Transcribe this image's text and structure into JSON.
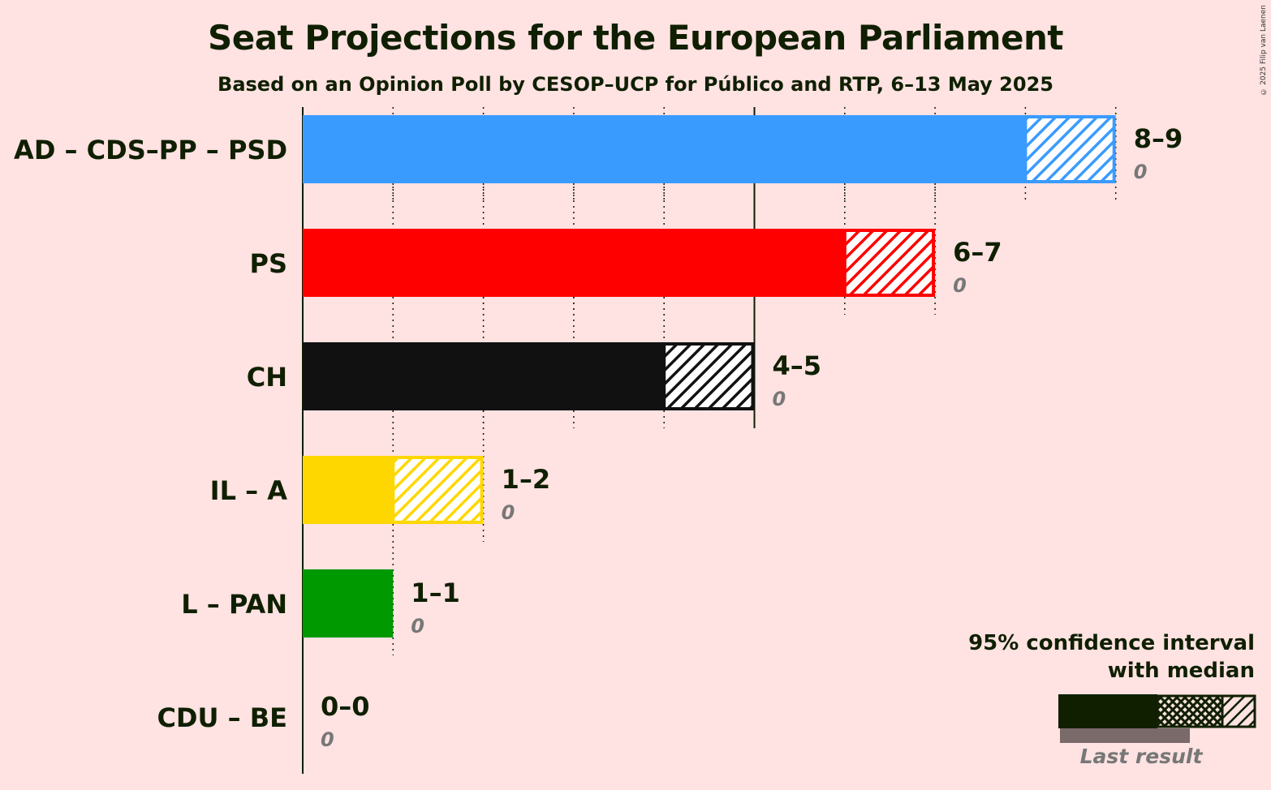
{
  "title": "Seat Projections for the European Parliament",
  "subtitle": "Based on an Opinion Poll by CESOP–UCP for Público and RTP, 6–13 May 2025",
  "copyright": "© 2025 Filip van Laenen",
  "legend": {
    "line1": "95% confidence interval",
    "line2": "with median",
    "last_result": "Last result"
  },
  "chart_data": {
    "type": "bar",
    "orientation": "horizontal",
    "title": "Seat Projections for the European Parliament",
    "subtitle": "Based on an Opinion Poll by CESOP–UCP for Público and RTP, 6–13 May 2025",
    "xlim": [
      0,
      9
    ],
    "grid": true,
    "legend_position": "bottom-right",
    "series": [
      {
        "party": "AD – CDS–PP – PSD",
        "low": 8,
        "high": 9,
        "range_label": "8–9",
        "last_result": "0",
        "color": "#3A9BFF"
      },
      {
        "party": "PS",
        "low": 6,
        "high": 7,
        "range_label": "6–7",
        "last_result": "0",
        "color": "#FF0000"
      },
      {
        "party": "CH",
        "low": 4,
        "high": 5,
        "range_label": "4–5",
        "last_result": "0",
        "color": "#111111"
      },
      {
        "party": "IL – A",
        "low": 1,
        "high": 2,
        "range_label": "1–2",
        "last_result": "0",
        "color": "#FFD700"
      },
      {
        "party": "L – PAN",
        "low": 1,
        "high": 1,
        "range_label": "1–1",
        "last_result": "0",
        "color": "#009900"
      },
      {
        "party": "CDU – BE",
        "low": 0,
        "high": 0,
        "range_label": "0–0",
        "last_result": "0",
        "color": "#CC0000"
      }
    ]
  }
}
